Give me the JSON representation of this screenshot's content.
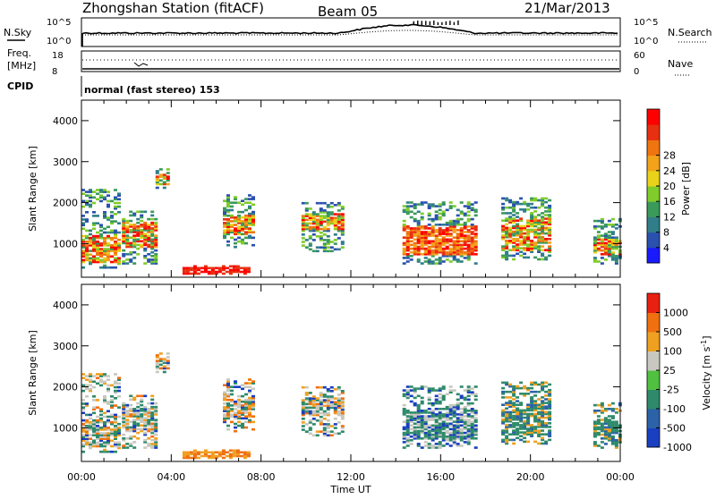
{
  "header": {
    "station": "Zhongshan Station (fitACF)",
    "beam": "Beam 05",
    "date": "21/Mar/2013"
  },
  "top_panels": {
    "nsky_label": "N.Sky",
    "nsky_ticks": [
      "10^5",
      "10^0"
    ],
    "nsearch_label": "N.Search",
    "freq_label_line1": "Freq.",
    "freq_label_line2": "[MHz]",
    "freq_ticks": [
      "18",
      "8"
    ],
    "nave_label": "Nave",
    "nave_ticks": [
      "60",
      "0"
    ],
    "cpid_label": "CPID",
    "cpid_text": "normal (fast stereo) 153"
  },
  "chart_data": [
    {
      "type": "heatmap",
      "name": "power",
      "ylabel": "Slant Range [km]",
      "xlabel": "Time UT",
      "x_ticks": [
        "00:00",
        "04:00",
        "08:00",
        "12:00",
        "16:00",
        "20:00",
        "00:00"
      ],
      "y_ticks": [
        "1000",
        "2000",
        "3000",
        "4000"
      ],
      "ylim": [
        180,
        4500
      ],
      "xlim_hours": [
        0,
        24
      ],
      "colorbar": {
        "label": "Power [dB]",
        "ticks": [
          "4",
          "8",
          "12",
          "16",
          "20",
          "24",
          "28"
        ],
        "colors": [
          "#1a1aff",
          "#2a50b0",
          "#2f7e8a",
          "#3a9a5a",
          "#7fcc2a",
          "#e8d21a",
          "#f2a31a",
          "#f07510",
          "#e83010",
          "#ff0000"
        ]
      },
      "echo_regions": [
        {
          "t0": 0.0,
          "t1": 1.7,
          "r0": 400,
          "r1": 2300,
          "core": [
            500,
            1200
          ]
        },
        {
          "t0": 1.8,
          "t1": 3.3,
          "r0": 500,
          "r1": 1800,
          "core": [
            900,
            1500
          ]
        },
        {
          "t0": 3.3,
          "t1": 3.9,
          "r0": 2300,
          "r1": 2800,
          "core": [
            2400,
            2700
          ]
        },
        {
          "t0": 4.5,
          "t1": 7.5,
          "r0": 250,
          "r1": 450,
          "core": [
            250,
            420
          ]
        },
        {
          "t0": 6.3,
          "t1": 7.6,
          "r0": 900,
          "r1": 2200,
          "core": [
            1200,
            1700
          ]
        },
        {
          "t0": 9.8,
          "t1": 11.6,
          "r0": 800,
          "r1": 2000,
          "core": [
            1300,
            1700
          ]
        },
        {
          "t0": 14.3,
          "t1": 17.5,
          "r0": 500,
          "r1": 2000,
          "core": [
            700,
            1400
          ]
        },
        {
          "t0": 18.7,
          "t1": 20.8,
          "r0": 600,
          "r1": 2100,
          "core": [
            800,
            1600
          ]
        },
        {
          "t0": 22.8,
          "t1": 24.0,
          "r0": 500,
          "r1": 1600,
          "core": [
            700,
            1100
          ]
        }
      ]
    },
    {
      "type": "heatmap",
      "name": "velocity",
      "ylabel": "Slant Range [km]",
      "xlabel": "Time UT",
      "x_ticks": [
        "00:00",
        "04:00",
        "08:00",
        "12:00",
        "16:00",
        "20:00",
        "00:00"
      ],
      "y_ticks": [
        "1000",
        "2000",
        "3000",
        "4000"
      ],
      "ylim": [
        180,
        4500
      ],
      "xlim_hours": [
        0,
        24
      ],
      "colorbar": {
        "label": "Velocity [m s-1]",
        "ticks": [
          "1000",
          "500",
          "100",
          "25",
          "-25",
          "-100",
          "-500",
          "-1000"
        ],
        "colors": [
          "#1a3fc0",
          "#2b62a8",
          "#2e8a6a",
          "#4fc040",
          "#c8c8c0",
          "#f0a020",
          "#f07010",
          "#e82010"
        ]
      }
    }
  ]
}
